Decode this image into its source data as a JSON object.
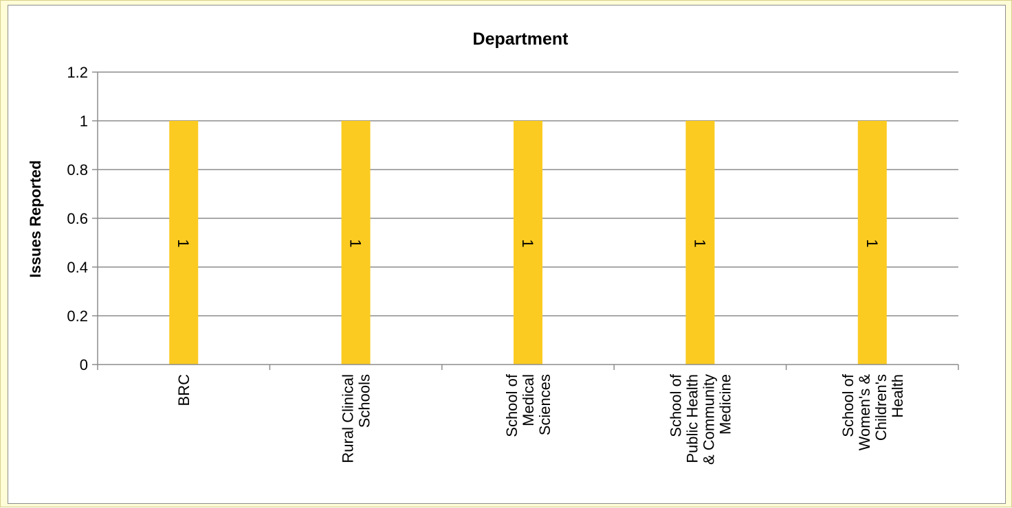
{
  "chart_data": {
    "type": "bar",
    "title": "Department",
    "xlabel": "",
    "ylabel": "Issues Reported",
    "ylim": [
      0,
      1.2
    ],
    "yticks": [
      0,
      0.2,
      0.4,
      0.6,
      0.8,
      1,
      1.2
    ],
    "ytick_labels": [
      "0",
      "0.2",
      "0.4",
      "0.6",
      "0.8",
      "1",
      "1.2"
    ],
    "categories": [
      "BRC",
      "Rural Clinical Schools",
      "School of Medical Sciences",
      "School of Public Health & Community Medicine",
      "School of Women's & Children's Health"
    ],
    "category_lines": [
      [
        "BRC"
      ],
      [
        "Rural Clinical",
        "Schools"
      ],
      [
        "School of",
        "Medical",
        "Sciences"
      ],
      [
        "School of",
        "Public Health",
        "& Community",
        "Medicine"
      ],
      [
        "School of",
        "Women's &",
        "Children's",
        "Health"
      ]
    ],
    "values": [
      1,
      1,
      1,
      1,
      1
    ],
    "data_labels": [
      "1",
      "1",
      "1",
      "1",
      "1"
    ],
    "grid": true,
    "legend": "none",
    "colors": {
      "bar": "#fbcb21",
      "grid": "#8c8c8c",
      "background": "#fffcd8"
    }
  }
}
